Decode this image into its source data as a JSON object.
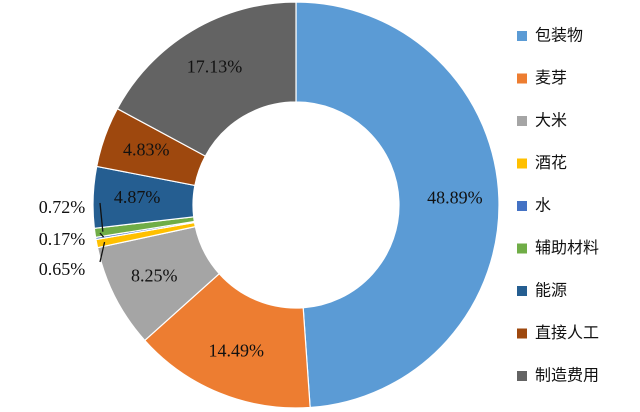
{
  "chart_data": {
    "type": "pie",
    "donut": true,
    "legend_position": "right",
    "slices": [
      {
        "name": "包装物",
        "value": 48.89,
        "label": "48.89%",
        "color": "#5B9BD5"
      },
      {
        "name": "麦芽",
        "value": 14.49,
        "label": "14.49%",
        "color": "#ED7D31"
      },
      {
        "name": "大米",
        "value": 8.25,
        "label": "8.25%",
        "color": "#A5A5A5"
      },
      {
        "name": "酒花",
        "value": 0.65,
        "label": "0.65%",
        "color": "#FFC000"
      },
      {
        "name": "水",
        "value": 0.17,
        "label": "0.17%",
        "color": "#4472C4"
      },
      {
        "name": "辅助材料",
        "value": 0.72,
        "label": "0.72%",
        "color": "#70AD47"
      },
      {
        "name": "能源",
        "value": 4.87,
        "label": "4.87%",
        "color": "#255E91"
      },
      {
        "name": "直接人工",
        "value": 4.83,
        "label": "4.83%",
        "color": "#9E480E"
      },
      {
        "name": "制造费用",
        "value": 17.13,
        "label": "17.13%",
        "color": "#636363"
      }
    ]
  }
}
